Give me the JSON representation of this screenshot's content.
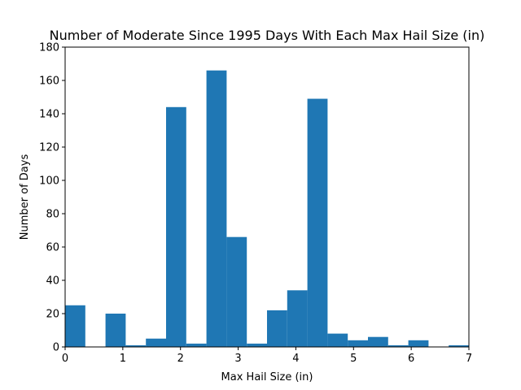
{
  "chart_data": {
    "type": "bar",
    "title": "Number of Moderate Since 1995 Days With Each Max Hail Size (in)",
    "xlabel": "Max Hail Size (in)",
    "ylabel": "Number of Days",
    "xlim": [
      0,
      7
    ],
    "ylim": [
      0,
      180
    ],
    "xticks": [
      "0",
      "1",
      "2",
      "3",
      "4",
      "5",
      "6",
      "7"
    ],
    "yticks": [
      "0",
      "20",
      "40",
      "60",
      "80",
      "100",
      "120",
      "140",
      "160",
      "180"
    ],
    "bin_edges": [
      0,
      0.35,
      0.7,
      1.05,
      1.4,
      1.75,
      2.1,
      2.45,
      2.8,
      3.15,
      3.5,
      3.85,
      4.2,
      4.55,
      4.9,
      5.25,
      5.6,
      5.95,
      6.3,
      6.65,
      7.0
    ],
    "values": [
      25,
      0,
      20,
      1,
      5,
      144,
      2,
      166,
      66,
      2,
      22,
      34,
      149,
      8,
      4,
      6,
      1,
      4,
      0,
      1
    ],
    "color": "#1f77b4",
    "grid": false
  }
}
